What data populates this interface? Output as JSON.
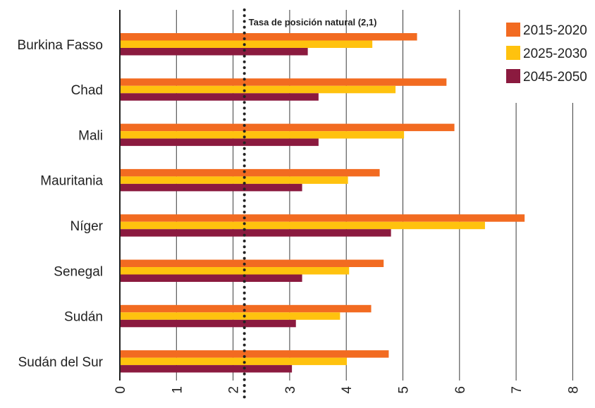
{
  "chart_data": {
    "type": "bar",
    "orientation": "horizontal",
    "categories": [
      "Burkina Fasso",
      "Chad",
      "Mali",
      "Mauritania",
      "Níger",
      "Senegal",
      "Sudán",
      "Sudán del Sur"
    ],
    "series": [
      {
        "name": "2015-2020",
        "color": "#f26b21",
        "values": [
          5.25,
          5.77,
          5.91,
          4.59,
          7.15,
          4.66,
          4.44,
          4.75
        ]
      },
      {
        "name": "2025-2030",
        "color": "#ffc20e",
        "values": [
          4.46,
          4.87,
          5.02,
          4.03,
          6.45,
          4.05,
          3.89,
          4.01
        ]
      },
      {
        "name": "2045-2050",
        "color": "#8b1a3f",
        "values": [
          3.32,
          3.51,
          3.51,
          3.22,
          4.79,
          3.22,
          3.11,
          3.04
        ]
      }
    ],
    "xlim": [
      0,
      8
    ],
    "xticks": [
      "0",
      "1",
      "2",
      "3",
      "4",
      "5",
      "6",
      "7",
      "8"
    ],
    "reference_line": {
      "value": 2.2,
      "label": "Tasa de posición natural (2,1)"
    },
    "legend_position": "top-right",
    "grid": "vertical"
  }
}
